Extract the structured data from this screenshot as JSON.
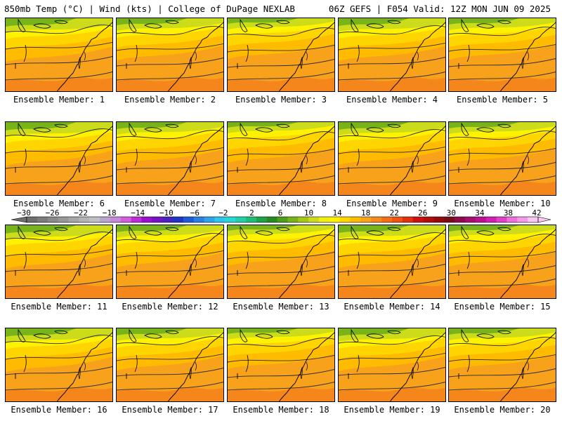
{
  "header": {
    "left": "850mb Temp (°C) | Wind (kts) | College of DuPage NEXLAB",
    "right": "06Z GEFS | F054 Valid: 12Z MON JUN 09 2025"
  },
  "panels": [
    {
      "label": "Ensemble Member: 1"
    },
    {
      "label": "Ensemble Member: 2"
    },
    {
      "label": "Ensemble Member: 3"
    },
    {
      "label": "Ensemble Member: 4"
    },
    {
      "label": "Ensemble Member: 5"
    },
    {
      "label": "Ensemble Member: 6"
    },
    {
      "label": "Ensemble Member: 7"
    },
    {
      "label": "Ensemble Member: 8"
    },
    {
      "label": "Ensemble Member: 9"
    },
    {
      "label": "Ensemble Member: 10"
    },
    {
      "label": "Ensemble Member: 11"
    },
    {
      "label": "Ensemble Member: 12"
    },
    {
      "label": "Ensemble Member: 13"
    },
    {
      "label": "Ensemble Member: 14"
    },
    {
      "label": "Ensemble Member: 15"
    },
    {
      "label": "Ensemble Member: 16"
    },
    {
      "label": "Ensemble Member: 17"
    },
    {
      "label": "Ensemble Member: 18"
    },
    {
      "label": "Ensemble Member: 19"
    },
    {
      "label": "Ensemble Member: 20"
    }
  ],
  "colorbar": {
    "labels": [
      "−30",
      "−26",
      "−22",
      "−18",
      "−14",
      "−10",
      "−6",
      "−2",
      "2",
      "6",
      "10",
      "14",
      "18",
      "22",
      "26",
      "30",
      "34",
      "38",
      "42"
    ],
    "colors": [
      "#6e6e6e",
      "#7c7c7c",
      "#8a8a8a",
      "#989898",
      "#a6a6a6",
      "#b4b4b4",
      "#c0c0c8",
      "#b9a6cf",
      "#c78ad8",
      "#d15edc",
      "#c229d9",
      "#9b10d0",
      "#7314c8",
      "#4b22c2",
      "#1e35c6",
      "#1f5ad6",
      "#2a7fe2",
      "#2fa2ea",
      "#2fc4ee",
      "#2ad7d7",
      "#22cfaa",
      "#1ebd78",
      "#1ca344",
      "#2a8a22",
      "#4d9e1a",
      "#78b31a",
      "#a3c81a",
      "#cddc1a",
      "#eeee12",
      "#fff200",
      "#ffd500",
      "#ffbb00",
      "#f9a21a",
      "#f7891e",
      "#f46f18",
      "#ef5212",
      "#e2310f",
      "#cf1010",
      "#b20c0c",
      "#950a0a",
      "#7a0c18",
      "#8e0b4a",
      "#a50d6e",
      "#bd1090",
      "#d41db2",
      "#e23fcb",
      "#ee6fdd",
      "#f59ae8",
      "#fac6f2"
    ]
  }
}
